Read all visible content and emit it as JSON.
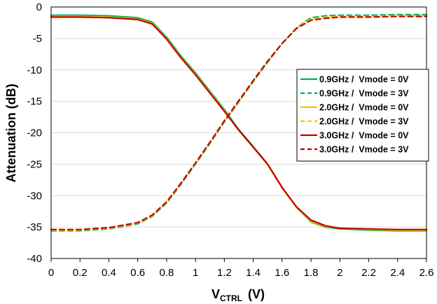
{
  "chart_data": {
    "type": "line",
    "title": "",
    "xlabel_main": "V",
    "xlabel_sub": "CTRL",
    "xlabel_unit": "(V)",
    "ylabel": "Attenuation  (dB)",
    "xlim": [
      0,
      2.6
    ],
    "ylim": [
      -40,
      0
    ],
    "x_ticks": [
      "0",
      "0.2",
      "0.4",
      "0.6",
      "0.8",
      "1",
      "1.2",
      "1.4",
      "1.6",
      "1.8",
      "2",
      "2.2",
      "2.4",
      "2.6"
    ],
    "y_ticks": [
      "0",
      "-5",
      "-10",
      "-15",
      "-20",
      "-25",
      "-30",
      "-35",
      "-40"
    ],
    "grid": "horizontal",
    "legend_position": "right-middle",
    "x": [
      0,
      0.2,
      0.4,
      0.6,
      0.7,
      0.8,
      0.9,
      1.0,
      1.1,
      1.2,
      1.3,
      1.4,
      1.5,
      1.6,
      1.7,
      1.8,
      1.9,
      2.0,
      2.2,
      2.4,
      2.6
    ],
    "series": [
      {
        "name": "0.9GHz /  Vmode = 0V",
        "color": "#00b050",
        "dash": "solid",
        "values": [
          -1.3,
          -1.3,
          -1.4,
          -1.7,
          -2.4,
          -4.8,
          -7.8,
          -10.5,
          -13.4,
          -16.3,
          -19.5,
          -22.2,
          -25.0,
          -28.7,
          -31.9,
          -34.2,
          -35.0,
          -35.3,
          -35.5,
          -35.6,
          -35.6
        ]
      },
      {
        "name": "0.9GHz /  Vmode = 3V",
        "color": "#00b050",
        "dash": "dashed",
        "values": [
          -35.6,
          -35.6,
          -35.3,
          -34.5,
          -33.3,
          -31.2,
          -28.2,
          -25.0,
          -21.7,
          -18.3,
          -15.1,
          -11.9,
          -8.8,
          -5.8,
          -3.3,
          -1.7,
          -1.4,
          -1.3,
          -1.3,
          -1.2,
          -1.2
        ]
      },
      {
        "name": "2.0GHz /  Vmode = 0V",
        "color": "#ffc000",
        "dash": "solid",
        "values": [
          -1.5,
          -1.5,
          -1.6,
          -1.9,
          -2.6,
          -5.0,
          -8.0,
          -10.7,
          -13.6,
          -16.5,
          -19.6,
          -22.3,
          -25.1,
          -28.8,
          -31.9,
          -34.1,
          -34.9,
          -35.2,
          -35.4,
          -35.5,
          -35.5
        ]
      },
      {
        "name": "2.0GHz /  Vmode = 3V",
        "color": "#ffc000",
        "dash": "dashed",
        "values": [
          -35.5,
          -35.5,
          -35.2,
          -34.4,
          -33.2,
          -31.1,
          -28.1,
          -24.9,
          -21.6,
          -18.2,
          -15.0,
          -11.8,
          -8.7,
          -5.8,
          -3.3,
          -1.9,
          -1.6,
          -1.5,
          -1.5,
          -1.4,
          -1.4
        ]
      },
      {
        "name": "3.0GHz /  Vmode = 0V",
        "color": "#c00000",
        "dash": "solid",
        "values": [
          -1.6,
          -1.6,
          -1.7,
          -2.0,
          -2.7,
          -5.1,
          -8.1,
          -10.8,
          -13.7,
          -16.6,
          -19.6,
          -22.3,
          -25.0,
          -28.7,
          -31.8,
          -33.9,
          -34.8,
          -35.2,
          -35.3,
          -35.4,
          -35.4
        ]
      },
      {
        "name": "3.0GHz /  Vmode = 3V",
        "color": "#c00000",
        "dash": "dashed",
        "values": [
          -35.4,
          -35.4,
          -35.1,
          -34.3,
          -33.1,
          -31.0,
          -28.0,
          -24.8,
          -21.5,
          -18.1,
          -14.9,
          -11.7,
          -8.6,
          -5.8,
          -3.4,
          -2.1,
          -1.8,
          -1.6,
          -1.6,
          -1.5,
          -1.5
        ]
      }
    ]
  }
}
